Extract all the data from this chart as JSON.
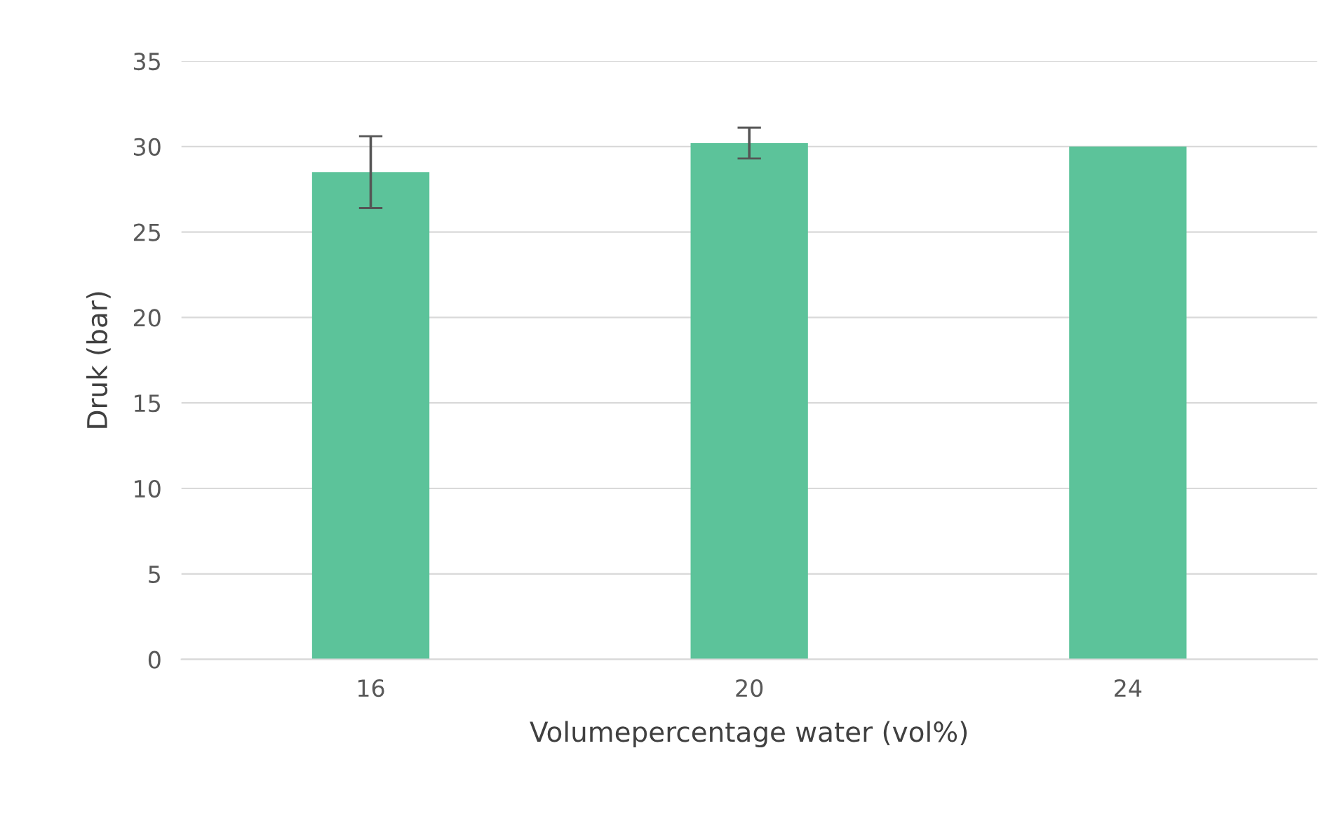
{
  "chart_data": {
    "type": "bar",
    "xlabel": "Volumepercentage water (vol%)",
    "ylabel": "Druk (bar)",
    "categories": [
      "16",
      "20",
      "24"
    ],
    "series": [
      {
        "color": "#5cc39a",
        "values": [
          28.5,
          30.2,
          30.0
        ],
        "errors": [
          2.1,
          0.9,
          null
        ]
      }
    ],
    "ylim": [
      0,
      35
    ],
    "yticks": [
      0,
      5,
      10,
      15,
      20,
      25,
      30,
      35
    ],
    "grid": "y",
    "legend": false
  }
}
